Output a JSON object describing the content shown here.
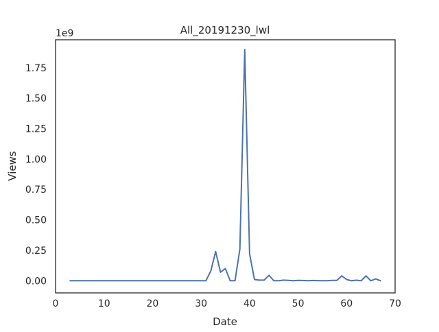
{
  "chart_data": {
    "type": "line",
    "title": "All_20191230_lwl",
    "xlabel": "Date",
    "ylabel": "Views",
    "y_offset_label": "1e9",
    "xlim": [
      0,
      70
    ],
    "ylim": [
      -0.1,
      1.98
    ],
    "x_ticks": [
      0,
      10,
      20,
      30,
      40,
      50,
      60,
      70
    ],
    "x_tick_labels": [
      "0",
      "10",
      "20",
      "30",
      "40",
      "50",
      "60",
      "70"
    ],
    "y_ticks": [
      0.0,
      0.25,
      0.5,
      0.75,
      1.0,
      1.25,
      1.5,
      1.75
    ],
    "y_tick_labels": [
      "0.00",
      "0.25",
      "0.50",
      "0.75",
      "1.00",
      "1.25",
      "1.50",
      "1.75"
    ],
    "grid": false,
    "line_color": "#4c72b0",
    "series": [
      {
        "x": [
          3,
          4,
          5,
          6,
          7,
          8,
          9,
          10,
          11,
          12,
          13,
          14,
          15,
          16,
          17,
          18,
          19,
          20,
          21,
          22,
          23,
          24,
          25,
          26,
          27,
          28,
          29,
          30,
          31,
          32,
          33,
          34,
          35,
          36,
          37,
          38,
          39,
          40,
          41,
          42,
          43,
          44,
          45,
          46,
          47,
          48,
          49,
          50,
          51,
          52,
          53,
          54,
          55,
          56,
          57,
          58,
          59,
          60,
          61,
          62,
          63,
          64,
          65,
          66,
          67
        ],
        "values": [
          0,
          0,
          0,
          0,
          0,
          0,
          0,
          0,
          0,
          0,
          0,
          0,
          0,
          0,
          0,
          0,
          0,
          0,
          0,
          0,
          0,
          0,
          0,
          0,
          0,
          0,
          0,
          0,
          0,
          0.08,
          0.24,
          0.07,
          0.1,
          0.0,
          0.0,
          0.26,
          1.9,
          0.22,
          0.01,
          0.005,
          0.005,
          0.045,
          0.0,
          0.0,
          0.005,
          0.003,
          0.0,
          0.003,
          0.002,
          0.0,
          0.002,
          0.001,
          0.0,
          0.0,
          0.003,
          0.003,
          0.04,
          0.01,
          0.0,
          0.004,
          0.0,
          0.04,
          0.0,
          0.015,
          0.0
        ]
      }
    ]
  }
}
